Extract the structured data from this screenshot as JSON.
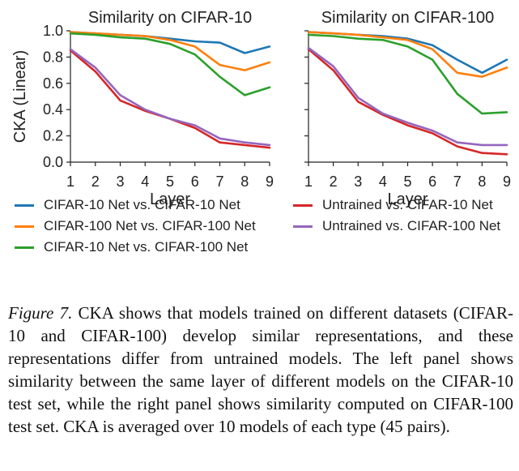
{
  "chart_data": [
    {
      "type": "line",
      "title": "Similarity on CIFAR-10",
      "xlabel": "Layer",
      "ylabel": "CKA (Linear)",
      "x": [
        1,
        2,
        3,
        4,
        5,
        6,
        7,
        8,
        9
      ],
      "xlim": [
        1,
        9
      ],
      "ylim": [
        0.0,
        1.0
      ],
      "yticks": [
        "0.0",
        "0.2",
        "0.4",
        "0.6",
        "0.8",
        "1.0"
      ],
      "series": [
        {
          "name": "CIFAR-10 Net vs. CIFAR-10 Net",
          "color": "#1f77b4",
          "values": [
            0.99,
            0.98,
            0.97,
            0.96,
            0.94,
            0.92,
            0.91,
            0.83,
            0.88
          ]
        },
        {
          "name": "CIFAR-100 Net vs. CIFAR-100 Net",
          "color": "#ff7f0e",
          "values": [
            0.99,
            0.98,
            0.97,
            0.96,
            0.93,
            0.88,
            0.74,
            0.7,
            0.76
          ]
        },
        {
          "name": "CIFAR-10 Net vs. CIFAR-100 Net",
          "color": "#2ca02c",
          "values": [
            0.98,
            0.97,
            0.95,
            0.94,
            0.9,
            0.82,
            0.65,
            0.51,
            0.57
          ]
        },
        {
          "name": "Untrained vs. CIFAR-10 Net",
          "color": "#d62728",
          "values": [
            0.85,
            0.69,
            0.47,
            0.39,
            0.33,
            0.26,
            0.15,
            0.13,
            0.11
          ]
        },
        {
          "name": "Untrained vs. CIFAR-100 Net",
          "color": "#9467bd",
          "values": [
            0.86,
            0.72,
            0.51,
            0.4,
            0.33,
            0.28,
            0.18,
            0.15,
            0.13
          ]
        }
      ]
    },
    {
      "type": "line",
      "title": "Similarity on CIFAR-100",
      "xlabel": "Layer",
      "x": [
        1,
        2,
        3,
        4,
        5,
        6,
        7,
        8,
        9
      ],
      "xlim": [
        1,
        9
      ],
      "ylim": [
        0.0,
        1.0
      ],
      "series": [
        {
          "name": "CIFAR-10 Net vs. CIFAR-10 Net",
          "color": "#1f77b4",
          "values": [
            0.99,
            0.98,
            0.97,
            0.96,
            0.94,
            0.89,
            0.78,
            0.68,
            0.78
          ]
        },
        {
          "name": "CIFAR-100 Net vs. CIFAR-100 Net",
          "color": "#ff7f0e",
          "values": [
            0.99,
            0.98,
            0.97,
            0.95,
            0.93,
            0.86,
            0.68,
            0.65,
            0.72
          ]
        },
        {
          "name": "CIFAR-10 Net vs. CIFAR-100 Net",
          "color": "#2ca02c",
          "values": [
            0.97,
            0.96,
            0.94,
            0.93,
            0.88,
            0.78,
            0.52,
            0.37,
            0.38
          ]
        },
        {
          "name": "Untrained vs. CIFAR-10 Net",
          "color": "#d62728",
          "values": [
            0.86,
            0.7,
            0.46,
            0.36,
            0.28,
            0.22,
            0.12,
            0.07,
            0.06
          ]
        },
        {
          "name": "Untrained vs. CIFAR-100 Net",
          "color": "#9467bd",
          "values": [
            0.87,
            0.73,
            0.49,
            0.37,
            0.3,
            0.24,
            0.15,
            0.13,
            0.13
          ]
        }
      ]
    }
  ],
  "legend": {
    "items": [
      {
        "label": "CIFAR-10 Net vs. CIFAR-10 Net",
        "color": "#1f77b4"
      },
      {
        "label": "CIFAR-100 Net vs. CIFAR-100 Net",
        "color": "#ff7f0e"
      },
      {
        "label": "CIFAR-10 Net vs. CIFAR-100 Net",
        "color": "#2ca02c"
      },
      {
        "label": "Untrained vs. CIFAR-10 Net",
        "color": "#d62728"
      },
      {
        "label": "Untrained vs. CIFAR-100 Net",
        "color": "#9467bd"
      }
    ]
  },
  "caption": {
    "label": "Figure 7.",
    "text": " CKA shows that models trained on different datasets (CIFAR-10 and CIFAR-100) develop similar representations, and these representations differ from untrained models. The left panel shows similarity between the same layer of different models on the CIFAR-10 test set, while the right panel shows similarity computed on CIFAR-100 test set. CKA is averaged over 10 models of each type (45 pairs)."
  }
}
